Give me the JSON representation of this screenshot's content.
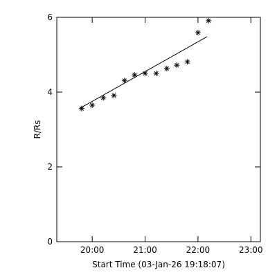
{
  "chart_data": {
    "type": "scatter",
    "xlabel": "Start Time (03-Jan-26 19:18:07)",
    "ylabel": "R/Rs",
    "x": [
      19.8,
      20.0,
      20.21,
      20.41,
      20.61,
      20.8,
      21.0,
      21.21,
      21.41,
      21.6,
      21.8,
      22.0,
      22.2
    ],
    "values": [
      3.56,
      3.65,
      3.85,
      3.91,
      4.31,
      4.46,
      4.5,
      4.5,
      4.63,
      4.72,
      4.81,
      5.59,
      5.91
    ],
    "color": "#000000",
    "fit": {
      "x": [
        19.77,
        22.17
      ],
      "values": [
        3.57,
        5.48
      ]
    },
    "xlim": [
      19.33,
      23.18
    ],
    "ylim": [
      0,
      6
    ],
    "xticks": [
      {
        "value": 20,
        "label": "20:00"
      },
      {
        "value": 21,
        "label": "21:00"
      },
      {
        "value": 22,
        "label": "22:00"
      },
      {
        "value": 23,
        "label": "23:00"
      }
    ],
    "yticks": [
      0,
      2,
      4,
      6
    ]
  }
}
